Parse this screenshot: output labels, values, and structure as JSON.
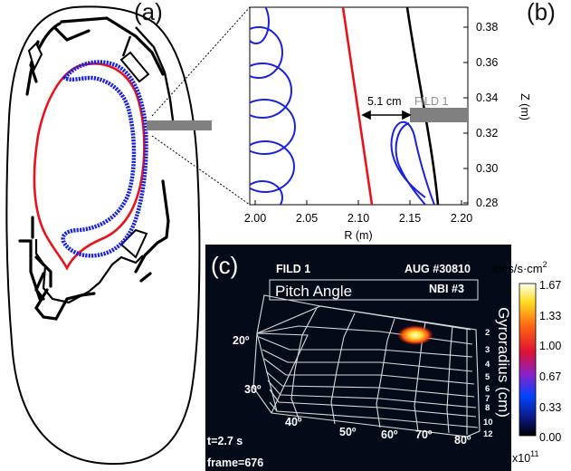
{
  "panels": {
    "a": "(a)",
    "b": "(b)",
    "c": "(c)"
  },
  "panel_b": {
    "xlabel": "R (m)",
    "ylabel": "Z (m)",
    "x_ticks": [
      "2.00",
      "2.05",
      "2.10",
      "2.15",
      "2.20"
    ],
    "y_ticks": [
      "0.38",
      "0.36",
      "0.34",
      "0.32",
      "0.30",
      "0.28"
    ],
    "gap_label": "5.1 cm",
    "detector_label": "FILD 1"
  },
  "panel_c": {
    "detector": "FILD 1",
    "shot": "AUG #30810",
    "beam": "NBI #3",
    "pitch_title": "Pitch Angle",
    "pitch_labels": [
      "20º",
      "30º",
      "40º",
      "50º",
      "60º",
      "70º",
      "80º"
    ],
    "gyro_labels": [
      "2",
      "3",
      "4",
      "5",
      "6",
      "7",
      "8",
      "10",
      "12"
    ],
    "gyro_title": "Gyroradius (cm)",
    "time": "t=2.7 s",
    "frame": "frame=676",
    "colorbar_units_prefix": "ions/s·cm",
    "colorbar_units_sup": "2",
    "colorbar_ticks": [
      "1.67",
      "1.33",
      "1.00",
      "0.67",
      "0.33",
      "0.00"
    ],
    "colorbar_multiplier": "x10",
    "colorbar_multiplier_exp": "11",
    "colors": {
      "background": "#050a18",
      "grid": "#d8d8d8",
      "spot_core": "#ffff66",
      "spot_edge": "#cc2200"
    }
  },
  "colors": {
    "separatrix": "#e8141c",
    "orbit": "#1a22e0",
    "wall": "#000000",
    "detector": "#808080"
  }
}
